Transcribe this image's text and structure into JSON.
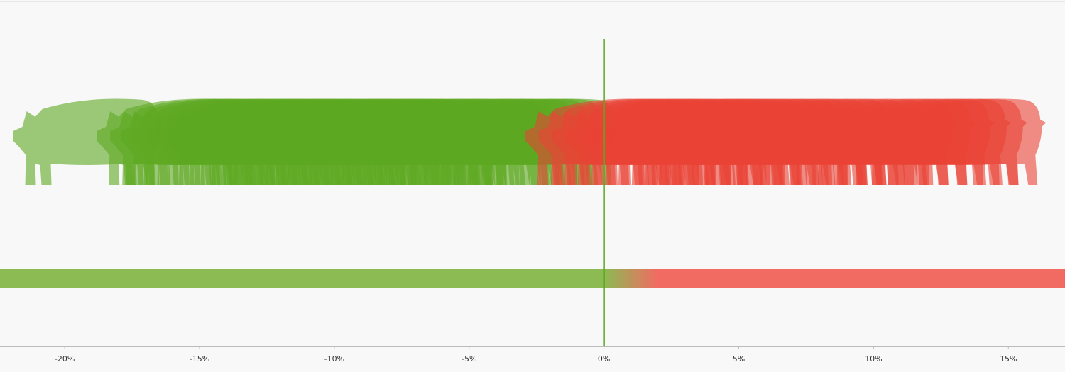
{
  "chart_data": {
    "type": "pictogram",
    "xlim": [
      -22.4,
      17.1
    ],
    "xticks": [
      {
        "value": -20,
        "label": "-20%"
      },
      {
        "value": -15,
        "label": "-15%"
      },
      {
        "value": -10,
        "label": "-10%"
      },
      {
        "value": -5,
        "label": "-5%"
      },
      {
        "value": 0,
        "label": "0%"
      },
      {
        "value": 5,
        "label": "5%"
      },
      {
        "value": 10,
        "label": "10%"
      },
      {
        "value": 15,
        "label": "15%"
      }
    ],
    "reference_line": 0,
    "series": [
      {
        "color": "#5ea822",
        "values": [
          -19.2,
          -16.1,
          -15.6,
          -15.2,
          -14.8,
          -14.3,
          -13.9,
          -13.5,
          -13.1,
          -12.7,
          -12.3,
          -11.9,
          -11.5,
          -11.1,
          -10.7,
          -10.3,
          -9.9,
          -9.5,
          -9.1,
          -8.7,
          -8.3,
          -7.9,
          -7.5,
          -7.1,
          -6.7,
          -6.3,
          -5.9,
          -5.5,
          -5.0,
          -4.6,
          -4.2,
          -3.8,
          -3.3,
          -2.8,
          -2.3
        ]
      },
      {
        "color": "#ea4335",
        "values": [
          -0.2,
          0.3,
          0.8,
          1.3,
          1.8,
          2.3,
          2.8,
          3.3,
          3.8,
          4.3,
          4.8,
          5.4,
          6.0,
          6.6,
          7.2,
          7.9,
          8.6,
          9.4,
          10.2,
          10.9,
          11.6,
          12.2,
          12.8,
          13.5
        ]
      }
    ]
  }
}
